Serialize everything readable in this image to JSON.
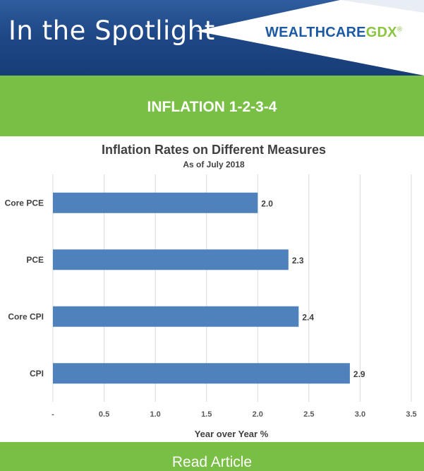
{
  "header": {
    "title": "In the Spotlight",
    "brand_part1": "WEALTHCARE",
    "brand_part2": "GDX",
    "brand_reg": "®",
    "colors": {
      "bg": "#1f4887",
      "brand_blue": "#1c5aa3",
      "brand_green": "#8cc540"
    }
  },
  "banner": {
    "title": "INFLATION 1-2-3-4",
    "color": "#79bf45"
  },
  "chart_data": {
    "type": "bar",
    "orientation": "horizontal",
    "title": "Inflation Rates on Different Measures",
    "subtitle": "As of July 2018",
    "categories": [
      "Core PCE",
      "PCE",
      "Core CPI",
      "CPI"
    ],
    "values": [
      2.0,
      2.3,
      2.4,
      2.9
    ],
    "data_labels": [
      "2.0",
      "2.3",
      "2.4",
      "2.9"
    ],
    "xlabel": "Year over Year %",
    "ylabel": "",
    "xlim": [
      0,
      3.5
    ],
    "x_ticks": [
      0,
      0.5,
      1.0,
      1.5,
      2.0,
      2.5,
      3.0,
      3.5
    ],
    "x_tick_labels": [
      "-",
      "0.5",
      "1.0",
      "1.5",
      "2.0",
      "2.5",
      "3.0",
      "3.5"
    ],
    "grid": "vertical",
    "legend": "none",
    "bar_color": "#4f81bd"
  },
  "footer": {
    "button_label": "Read Article",
    "color": "#79bf45"
  }
}
